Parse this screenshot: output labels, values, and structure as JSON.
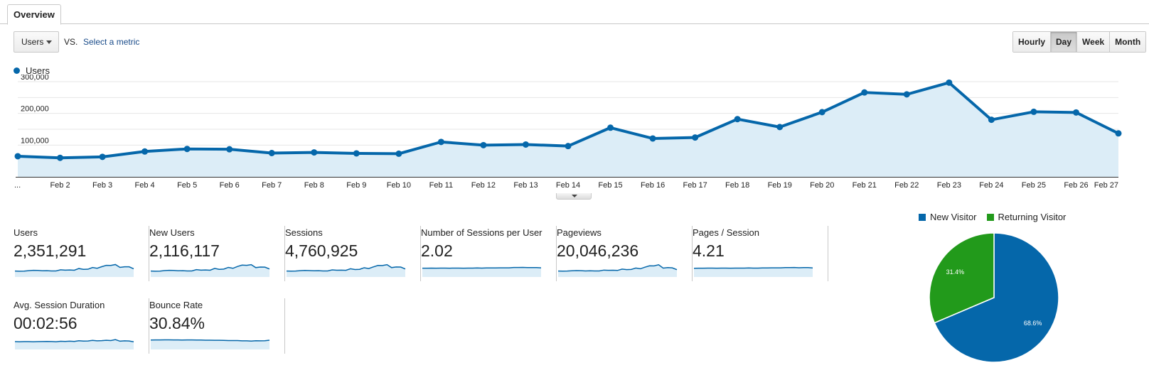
{
  "tabs": [
    {
      "label": "Overview"
    }
  ],
  "metric_selector": {
    "value": "Users",
    "vs_label": "VS.",
    "select_metric_label": "Select a metric"
  },
  "granularity": {
    "buttons": [
      "Hourly",
      "Day",
      "Week",
      "Month"
    ],
    "active": "Day"
  },
  "colors": {
    "series": "#0567aa",
    "area": "#dcedf7",
    "new_visitor": "#0567aa",
    "returning_visitor": "#229a1b"
  },
  "chart_data": [
    {
      "type": "line",
      "title": "",
      "series": [
        {
          "name": "Users",
          "values": [
            65000,
            60000,
            63000,
            80000,
            88000,
            87000,
            75000,
            77000,
            74000,
            73000,
            110000,
            100000,
            102000,
            97000,
            155000,
            121000,
            124000,
            182000,
            157000,
            204000,
            266000,
            260000,
            297000,
            180000,
            205000,
            203000,
            137000
          ]
        }
      ],
      "categories": [
        "...",
        "Feb 2",
        "Feb 3",
        "Feb 4",
        "Feb 5",
        "Feb 6",
        "Feb 7",
        "Feb 8",
        "Feb 9",
        "Feb 10",
        "Feb 11",
        "Feb 12",
        "Feb 13",
        "Feb 14",
        "Feb 15",
        "Feb 16",
        "Feb 17",
        "Feb 18",
        "Feb 19",
        "Feb 20",
        "Feb 21",
        "Feb 22",
        "Feb 23",
        "Feb 24",
        "Feb 25",
        "Feb 26",
        "Feb 27"
      ],
      "y_ticks": [
        {
          "value": 100000,
          "label": "100,000"
        },
        {
          "value": 200000,
          "label": "200,000"
        },
        {
          "value": 300000,
          "label": "300,000"
        }
      ],
      "ylim": [
        0,
        300000
      ],
      "grid": true,
      "legend": "top-left"
    },
    {
      "type": "pie",
      "legend": "top",
      "slices": [
        {
          "name": "New Visitor",
          "value": 68.6,
          "label": "68.6%"
        },
        {
          "name": "Returning Visitor",
          "value": 31.4,
          "label": "31.4%"
        }
      ]
    }
  ],
  "scorecards": [
    {
      "label": "Users",
      "value": "2,351,291",
      "spark": [
        40,
        38,
        39,
        43,
        46,
        45,
        42,
        43,
        41,
        41,
        51,
        48,
        49,
        47,
        62,
        55,
        56,
        71,
        64,
        78,
        90,
        89,
        97,
        72,
        77,
        77,
        60
      ]
    },
    {
      "label": "New Users",
      "value": "2,116,117",
      "spark": [
        40,
        38,
        39,
        44,
        46,
        45,
        42,
        43,
        41,
        41,
        52,
        48,
        49,
        47,
        63,
        55,
        57,
        72,
        64,
        80,
        92,
        90,
        96,
        70,
        75,
        74,
        58
      ]
    },
    {
      "label": "Sessions",
      "value": "4,760,925",
      "spark": [
        40,
        39,
        40,
        43,
        45,
        44,
        42,
        43,
        41,
        41,
        50,
        47,
        48,
        46,
        60,
        53,
        55,
        69,
        62,
        76,
        89,
        88,
        96,
        70,
        76,
        75,
        58
      ]
    },
    {
      "label": "Number of Sessions per User",
      "value": "2.02",
      "spark": [
        65,
        65,
        66,
        65,
        66,
        66,
        65,
        66,
        66,
        65,
        66,
        66,
        67,
        66,
        67,
        67,
        67,
        68,
        68,
        68,
        71,
        71,
        72,
        70,
        70,
        70,
        68
      ]
    },
    {
      "label": "Pageviews",
      "value": "20,046,236",
      "spark": [
        40,
        39,
        40,
        42,
        44,
        43,
        41,
        42,
        41,
        41,
        48,
        46,
        47,
        45,
        57,
        52,
        54,
        66,
        60,
        74,
        86,
        85,
        95,
        66,
        70,
        68,
        52
      ]
    },
    {
      "label": "Pages / Session",
      "value": "4.21",
      "spark": [
        64,
        65,
        65,
        66,
        66,
        65,
        66,
        66,
        65,
        66,
        66,
        66,
        67,
        66,
        66,
        67,
        67,
        68,
        68,
        68,
        70,
        70,
        71,
        69,
        70,
        70,
        67
      ]
    },
    {
      "label": "Avg. Session Duration",
      "value": "00:02:56",
      "spark": [
        56,
        55,
        56,
        56,
        55,
        56,
        57,
        58,
        57,
        55,
        59,
        58,
        60,
        58,
        64,
        61,
        62,
        67,
        63,
        65,
        68,
        66,
        74,
        60,
        63,
        62,
        55
      ]
    },
    {
      "label": "Bounce Rate",
      "value": "30.84%",
      "spark": [
        70,
        71,
        71,
        72,
        72,
        71,
        71,
        70,
        71,
        71,
        70,
        70,
        69,
        69,
        68,
        68,
        67,
        66,
        66,
        66,
        63,
        63,
        61,
        64,
        63,
        64,
        69
      ]
    }
  ],
  "pie_legend": [
    {
      "name": "New Visitor"
    },
    {
      "name": "Returning Visitor"
    }
  ]
}
